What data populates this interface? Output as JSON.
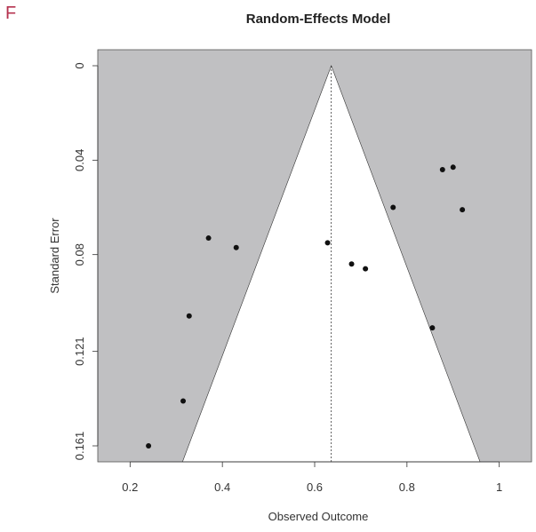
{
  "panel_label": "F",
  "colors": {
    "shaded_region": "#c0c0c2",
    "funnel_interior": "#ffffff",
    "points": "#111111",
    "panel_label": "#b5334f"
  },
  "chart_data": {
    "type": "scatter",
    "title": "Random-Effects Model",
    "xlabel": "Observed Outcome",
    "ylabel": "Standard Error",
    "xlim": [
      0.13,
      1.07
    ],
    "ylim": [
      0.1645,
      0.0
    ],
    "x_ticks": [
      0.2,
      0.4,
      0.6,
      0.8,
      1.0
    ],
    "x_tick_labels": [
      "0.2",
      "0.4",
      "0.6",
      "0.8",
      "1"
    ],
    "y_ticks": [
      0.0,
      0.04,
      0.08,
      0.121,
      0.161
    ],
    "y_tick_labels": [
      "0",
      "0.04",
      "0.08",
      "0.121",
      "0.161"
    ],
    "summary_estimate": 0.636,
    "funnel_z": 1.96,
    "funnel_max_se": 0.1645,
    "points": [
      {
        "x": 0.24,
        "y": 0.161
      },
      {
        "x": 0.315,
        "y": 0.142
      },
      {
        "x": 0.328,
        "y": 0.106
      },
      {
        "x": 0.37,
        "y": 0.073
      },
      {
        "x": 0.43,
        "y": 0.077
      },
      {
        "x": 0.628,
        "y": 0.075
      },
      {
        "x": 0.68,
        "y": 0.084
      },
      {
        "x": 0.71,
        "y": 0.086
      },
      {
        "x": 0.77,
        "y": 0.06
      },
      {
        "x": 0.855,
        "y": 0.111
      },
      {
        "x": 0.877,
        "y": 0.044
      },
      {
        "x": 0.9,
        "y": 0.043
      },
      {
        "x": 0.92,
        "y": 0.061
      }
    ]
  }
}
